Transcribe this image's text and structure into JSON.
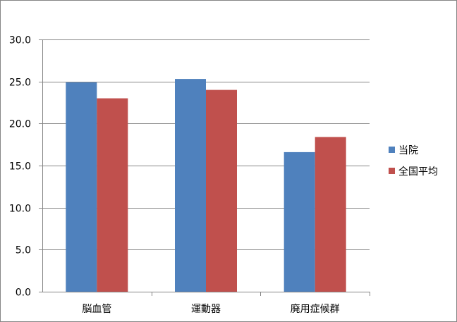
{
  "chart_data": {
    "type": "bar",
    "title": "",
    "xlabel": "",
    "ylabel": "",
    "categories": [
      "脳血管",
      "運動器",
      "廃用症候群"
    ],
    "series": [
      {
        "name": "当院",
        "color": "#4F81BD",
        "values": [
          24.9,
          25.3,
          16.6
        ]
      },
      {
        "name": "全国平均",
        "color": "#C0504D",
        "values": [
          23.0,
          24.0,
          18.4
        ]
      }
    ],
    "ylim": [
      0,
      30
    ],
    "yticks": [
      "0.0",
      "5.0",
      "10.0",
      "15.0",
      "20.0",
      "25.0",
      "30.0"
    ],
    "ytick_values": [
      0,
      5,
      10,
      15,
      20,
      25,
      30
    ],
    "grid": true,
    "legend": "right"
  }
}
